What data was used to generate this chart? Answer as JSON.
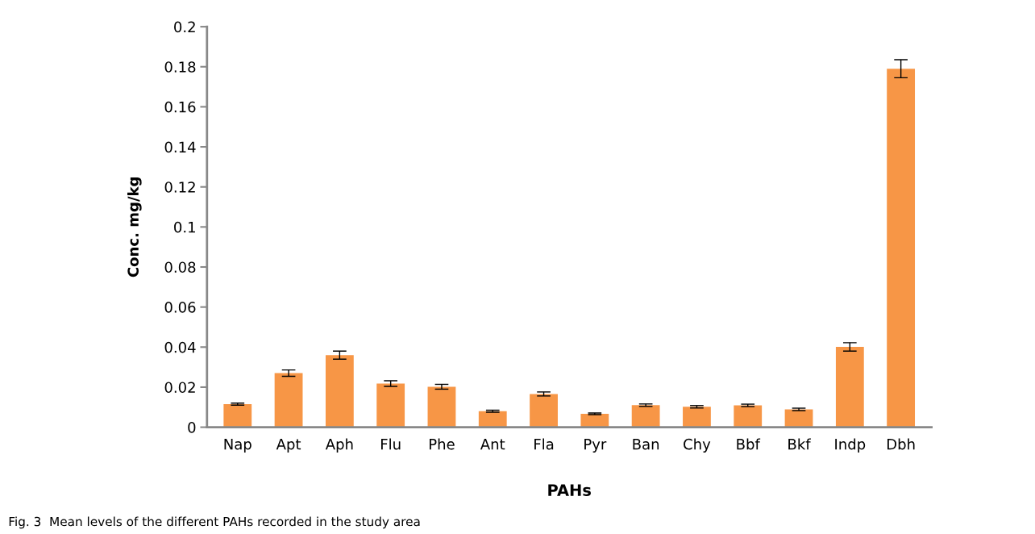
{
  "chart_data": {
    "type": "bar",
    "xlabel": "PAHs",
    "ylabel": "Conc. mg/kg",
    "categories": [
      "Nap",
      "Apt",
      "Aph",
      "Flu",
      "Phe",
      "Ant",
      "Fla",
      "Pyr",
      "Ban",
      "Chy",
      "Bbf",
      "Bkf",
      "Indp",
      "Dbh"
    ],
    "values": [
      0.0115,
      0.027,
      0.036,
      0.0218,
      0.0202,
      0.008,
      0.0166,
      0.0067,
      0.011,
      0.0102,
      0.0109,
      0.0089,
      0.0401,
      0.179
    ],
    "errors": [
      0.0005,
      0.0016,
      0.002,
      0.0014,
      0.0012,
      0.0005,
      0.001,
      0.0004,
      0.0006,
      0.0006,
      0.0006,
      0.0006,
      0.0021,
      0.0045
    ],
    "color": "#f79646",
    "ylim": [
      0,
      0.2
    ],
    "yticks": [
      0,
      0.02,
      0.04,
      0.06,
      0.08,
      0.1,
      0.12,
      0.14,
      0.16,
      0.18,
      0.2
    ],
    "grid": false,
    "annotations": [
      "Fig. 3  Mean levels of the different PAHs recorded in the study area"
    ]
  }
}
